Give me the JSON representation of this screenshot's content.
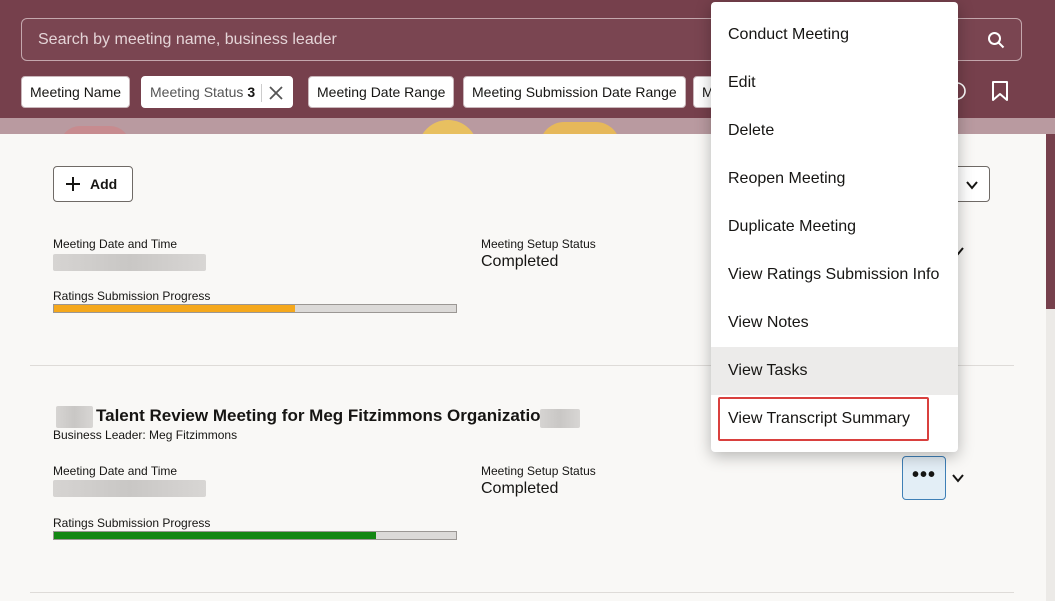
{
  "search": {
    "placeholder": "Search by meeting name, business leader"
  },
  "filters": {
    "chips": [
      {
        "label": "Meeting Name"
      },
      {
        "label": "Meeting Status",
        "count": "3"
      },
      {
        "label": "Meeting Date Range"
      },
      {
        "label": "Meeting Submission Date Range"
      },
      {
        "label": "M"
      }
    ]
  },
  "toolbar": {
    "add_label": "Add"
  },
  "meetings": [
    {
      "date_label": "Meeting Date and Time",
      "status_label": "Meeting Setup Status",
      "status_value": "Completed",
      "progress_label": "Ratings Submission Progress",
      "progress": 0.6,
      "progress_color": "#f5a81c"
    },
    {
      "title": "Talent Review Meeting for Meg Fitzimmons Organization -",
      "business_leader": "Business Leader: Meg Fitzimmons",
      "date_label": "Meeting Date and Time",
      "status_label": "Meeting Setup Status",
      "status_value": "Completed",
      "progress_label": "Ratings Submission Progress",
      "progress": 0.8,
      "progress_color": "#138713"
    }
  ],
  "more_button": {
    "label": "•••"
  },
  "menu": {
    "items": [
      {
        "label": "Conduct Meeting"
      },
      {
        "label": "Edit"
      },
      {
        "label": "Delete"
      },
      {
        "label": "Reopen Meeting"
      },
      {
        "label": "Duplicate Meeting"
      },
      {
        "label": "View Ratings Submission Info"
      },
      {
        "label": "View Notes"
      },
      {
        "label": "View Tasks"
      },
      {
        "label": "View Transcript Summary"
      }
    ]
  },
  "colors": {
    "header_bg": "#76404c",
    "highlight_border": "#d9403e",
    "focus_border": "#3e7fb6"
  }
}
